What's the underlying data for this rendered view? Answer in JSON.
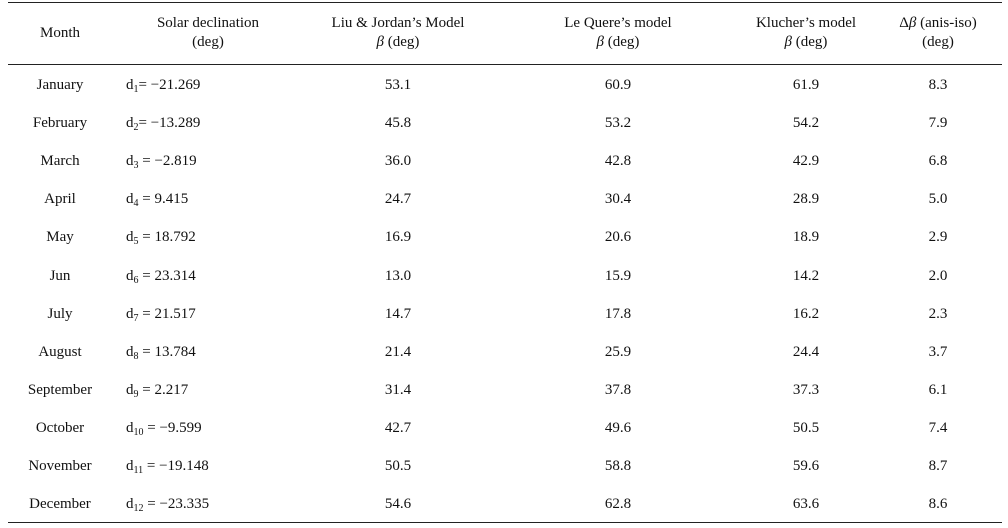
{
  "table": {
    "headers": [
      {
        "line1": "Month",
        "line2": ""
      },
      {
        "line1": "Solar declination",
        "line2": "(deg)"
      },
      {
        "line1": "Liu & Jordan’s Model",
        "line2_beta": "β",
        "line2_rest": " (deg)"
      },
      {
        "line1": "Le Quere’s model",
        "line2_beta": "β",
        "line2_rest": " (deg)"
      },
      {
        "line1": "Klucher’s model",
        "line2_beta": "β",
        "line2_rest": " (deg)"
      },
      {
        "line1_prefix": "Δ",
        "line1_beta": "β",
        "line1_rest": " (anis-iso)",
        "line2": "(deg)"
      }
    ],
    "rows": [
      {
        "month": "January",
        "d": "d",
        "sub": "1",
        "decl": "= −21.269",
        "liu": "53.1",
        "lequere": "60.9",
        "klucher": "61.9",
        "delta": "8.3"
      },
      {
        "month": "February",
        "d": "d",
        "sub": "2",
        "decl": "= −13.289",
        "liu": "45.8",
        "lequere": "53.2",
        "klucher": "54.2",
        "delta": "7.9"
      },
      {
        "month": "March",
        "d": "d",
        "sub": "3",
        "decl": " = −2.819",
        "liu": "36.0",
        "lequere": "42.8",
        "klucher": "42.9",
        "delta": "6.8"
      },
      {
        "month": "April",
        "d": "d",
        "sub": "4",
        "decl": " = 9.415",
        "liu": "24.7",
        "lequere": "30.4",
        "klucher": "28.9",
        "delta": "5.0"
      },
      {
        "month": "May",
        "d": "d",
        "sub": "5",
        "decl": " = 18.792",
        "liu": "16.9",
        "lequere": "20.6",
        "klucher": "18.9",
        "delta": "2.9"
      },
      {
        "month": "Jun",
        "d": "d",
        "sub": "6",
        "decl": " = 23.314",
        "liu": "13.0",
        "lequere": "15.9",
        "klucher": "14.2",
        "delta": "2.0"
      },
      {
        "month": "July",
        "d": "d",
        "sub": "7",
        "decl": " = 21.517",
        "liu": "14.7",
        "lequere": "17.8",
        "klucher": "16.2",
        "delta": "2.3"
      },
      {
        "month": "August",
        "d": "d",
        "sub": "8",
        "decl": " = 13.784",
        "liu": "21.4",
        "lequere": "25.9",
        "klucher": "24.4",
        "delta": "3.7"
      },
      {
        "month": "September",
        "d": "d",
        "sub": "9",
        "decl": " = 2.217",
        "liu": "31.4",
        "lequere": "37.8",
        "klucher": "37.3",
        "delta": "6.1"
      },
      {
        "month": "October",
        "d": "d",
        "sub": "10",
        "decl": " = −9.599",
        "liu": "42.7",
        "lequere": "49.6",
        "klucher": "50.5",
        "delta": "7.4"
      },
      {
        "month": "November",
        "d": "d",
        "sub": "11",
        "decl": " = −19.148",
        "liu": "50.5",
        "lequere": "58.8",
        "klucher": "59.6",
        "delta": "8.7"
      },
      {
        "month": "December",
        "d": "d",
        "sub": "12",
        "decl": " = −23.335",
        "liu": "54.6",
        "lequere": "62.8",
        "klucher": "63.6",
        "delta": "8.6"
      }
    ]
  }
}
